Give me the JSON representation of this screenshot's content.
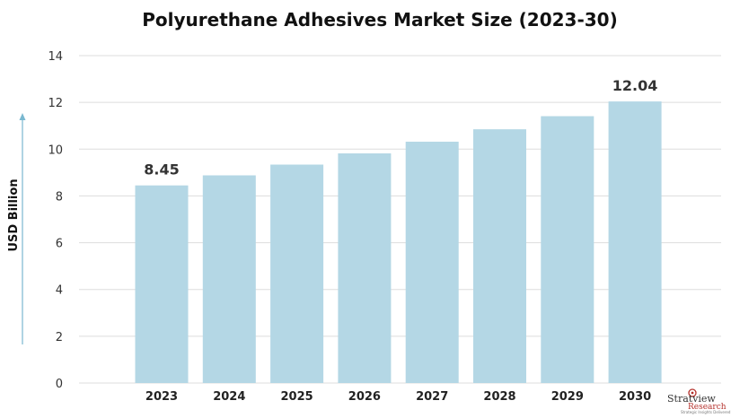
{
  "chart_data": {
    "type": "bar",
    "title": "Polyurethane Adhesives Market Size (2023-30)",
    "xlabel": "",
    "ylabel": "USD Billion",
    "categories": [
      "2023",
      "2024",
      "2025",
      "2026",
      "2027",
      "2028",
      "2029",
      "2030"
    ],
    "values": [
      8.45,
      8.88,
      9.34,
      9.82,
      10.32,
      10.85,
      11.41,
      12.04
    ],
    "data_labels": {
      "0": "8.45",
      "7": "12.04"
    },
    "ylim": [
      0,
      14
    ],
    "yticks": [
      0,
      2,
      4,
      6,
      8,
      10,
      12,
      14
    ],
    "grid": true,
    "legend": "none",
    "colors": {
      "bar": "#b4d7e5",
      "grid": "#dddddd",
      "arrow": "#7ab8d0"
    }
  },
  "brand": {
    "name": "Stratview",
    "sub": "Research",
    "tagline": "Strategic Insights Delivered"
  }
}
